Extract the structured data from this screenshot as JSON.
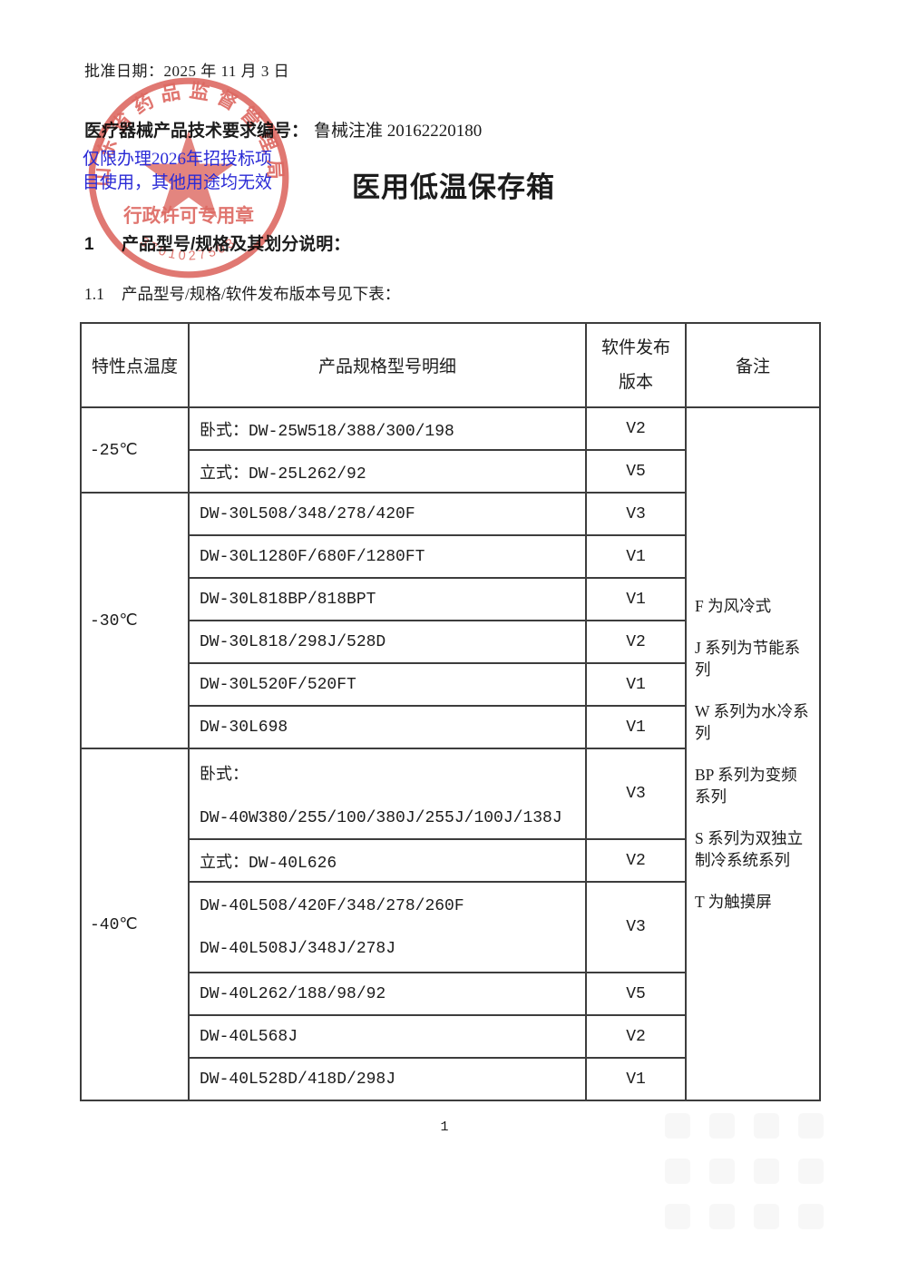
{
  "page": {
    "approval_date": "批准日期：2025 年 11 月 3 日",
    "doc_number_label": "医疗器械产品技术要求编号：",
    "doc_number_value": "鲁械注准 20162220180",
    "title": "医用低温保存箱",
    "page_number": "1"
  },
  "notice": {
    "line1": "仅限办理2026年招投标项",
    "line2": "目使用，其他用途均无效",
    "color": "#2a2ad6"
  },
  "stamp": {
    "authority": "山东省药品监督管理局",
    "label": "行政许可专用章",
    "number": "3701027503",
    "color": "#d8544c"
  },
  "sections": {
    "s1_num": "1",
    "s1_text": "产品型号/规格及其划分说明：",
    "s11_num": "1.1",
    "s11_text": "产品型号/规格/软件发布版本号见下表："
  },
  "table": {
    "headers": {
      "temp": "特性点温度",
      "model": "产品规格型号明细",
      "software_line1": "软件发布",
      "software_line2": "版本",
      "remark": "备注"
    },
    "groups": [
      {
        "temp": "-25℃",
        "rows": [
          {
            "lines": [
              "卧式：DW-25W518/388/300/198"
            ],
            "version": "V2"
          },
          {
            "lines": [
              "立式：DW-25L262/92"
            ],
            "version": "V5"
          }
        ]
      },
      {
        "temp": "-30℃",
        "rows": [
          {
            "lines": [
              "DW-30L508/348/278/420F"
            ],
            "version": "V3"
          },
          {
            "lines": [
              "DW-30L1280F/680F/1280FT"
            ],
            "version": "V1"
          },
          {
            "lines": [
              "DW-30L818BP/818BPT"
            ],
            "version": "V1"
          },
          {
            "lines": [
              "DW-30L818/298J/528D"
            ],
            "version": "V2"
          },
          {
            "lines": [
              "DW-30L520F/520FT"
            ],
            "version": "V1"
          },
          {
            "lines": [
              "DW-30L698"
            ],
            "version": "V1"
          }
        ]
      },
      {
        "temp": "-40℃",
        "rows": [
          {
            "lines": [
              "卧式：",
              "DW-40W380/255/100/380J/255J/100J/138J"
            ],
            "version": "V3"
          },
          {
            "lines": [
              "立式：DW-40L626"
            ],
            "version": "V2"
          },
          {
            "lines": [
              "DW-40L508/420F/348/278/260F",
              "DW-40L508J/348J/278J"
            ],
            "version": "V3"
          },
          {
            "lines": [
              "DW-40L262/188/98/92"
            ],
            "version": "V5"
          },
          {
            "lines": [
              "DW-40L568J"
            ],
            "version": "V2"
          },
          {
            "lines": [
              "DW-40L528D/418D/298J"
            ],
            "version": "V1"
          }
        ]
      }
    ],
    "remarks": [
      "F 为风冷式",
      "J 系列为节能系列",
      "W 系列为水冷系列",
      "BP 系列为变频系列",
      "S 系列为双独立制冷系统系列",
      "T 为触摸屏"
    ]
  }
}
